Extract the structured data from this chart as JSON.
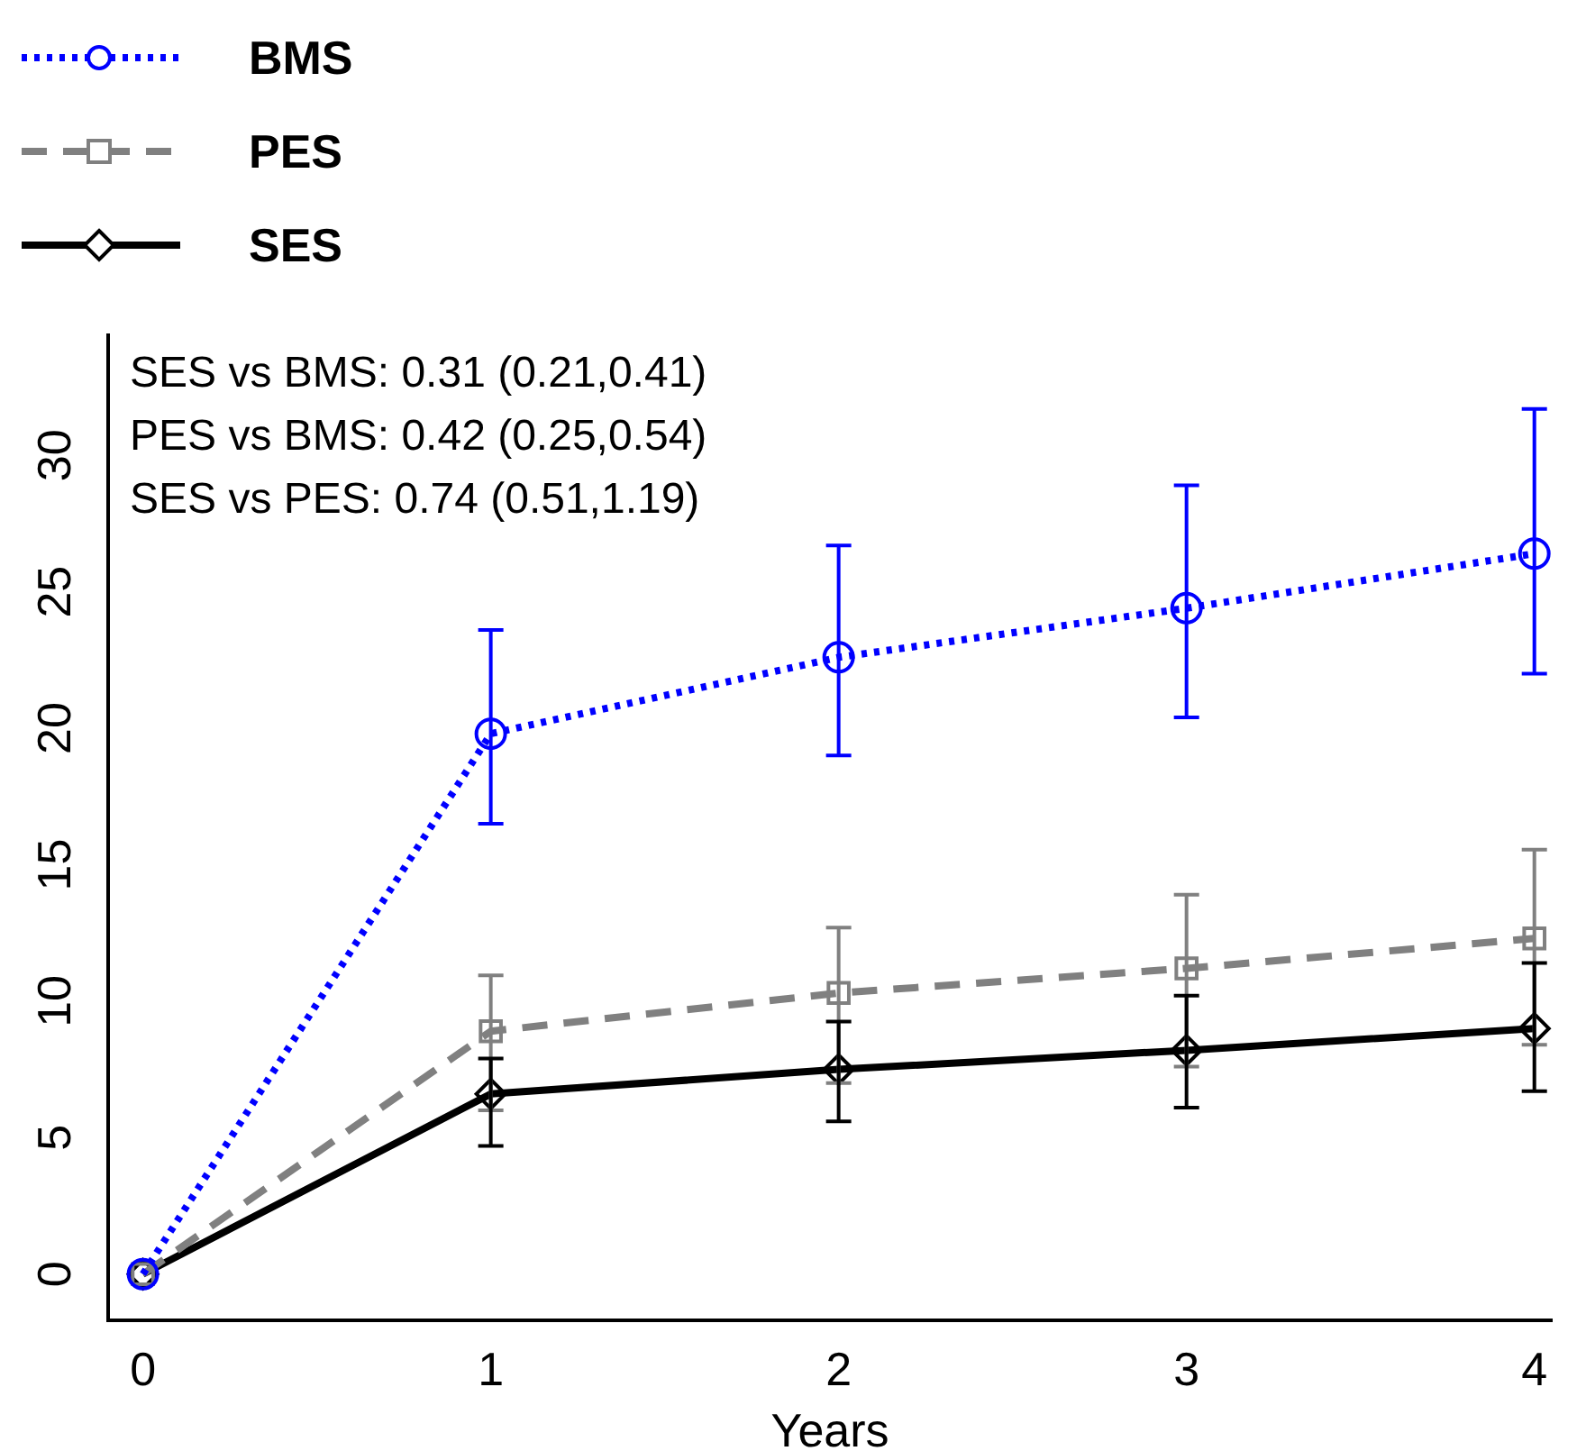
{
  "chart_data": {
    "type": "line",
    "xlabel": "Years",
    "x": [
      0,
      1,
      2,
      3,
      4
    ],
    "xlim": [
      -0.1,
      4.05
    ],
    "xticks": [
      0,
      1,
      2,
      3,
      4
    ],
    "ylim": [
      -1.7,
      34.4
    ],
    "yticks": [
      0,
      5,
      10,
      15,
      20,
      25,
      30
    ],
    "grid": false,
    "legend": "top left",
    "annotations": [
      "SES vs BMS: 0.31 (0.21,0.41)",
      "PES vs BMS: 0.42 (0.25,0.54)",
      "SES vs PES: 0.74 (0.51,1.19)"
    ],
    "series": [
      {
        "name": "BMS",
        "color": "#0000ff",
        "line_style": "dotted",
        "marker": "circle",
        "values": [
          0,
          19.8,
          22.6,
          24.4,
          26.4
        ],
        "errors": [
          null,
          [
            16.5,
            23.6
          ],
          [
            19.0,
            26.7
          ],
          [
            20.4,
            28.9
          ],
          [
            22.0,
            31.7
          ]
        ]
      },
      {
        "name": "PES",
        "color": "#808080",
        "line_style": "dashed",
        "marker": "square",
        "values": [
          0,
          8.9,
          10.3,
          11.2,
          12.3
        ],
        "errors": [
          null,
          [
            6.0,
            10.95
          ],
          [
            7.0,
            12.7
          ],
          [
            7.6,
            13.9
          ],
          [
            8.4,
            15.55
          ]
        ]
      },
      {
        "name": "SES",
        "color": "#000000",
        "line_style": "solid",
        "marker": "diamond",
        "values": [
          0,
          6.6,
          7.5,
          8.2,
          9.0
        ],
        "errors": [
          null,
          [
            4.7,
            7.9
          ],
          [
            5.6,
            9.25
          ],
          [
            6.1,
            10.2
          ],
          [
            6.7,
            11.4
          ]
        ]
      }
    ]
  }
}
